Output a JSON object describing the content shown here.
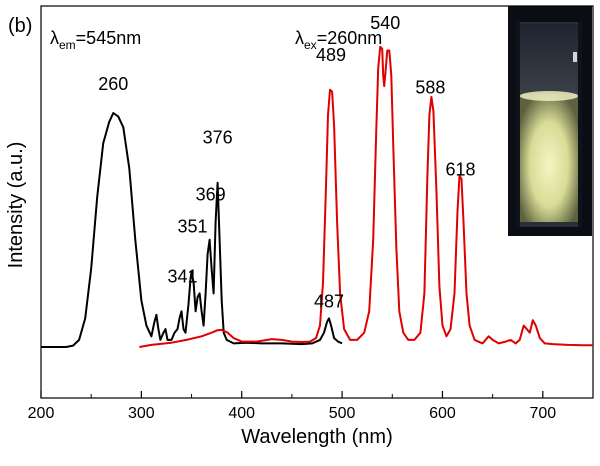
{
  "chart_data": {
    "type": "line",
    "panel_label": "(b)",
    "xlabel": "Wavelength (nm)",
    "ylabel": "Intensity (a.u.)",
    "xlim": [
      200,
      750
    ],
    "ylim": [
      0,
      1.08
    ],
    "x_ticks": [
      200,
      300,
      400,
      500,
      600,
      700
    ],
    "y_ticks_shown": false,
    "grid": false,
    "legend": "none",
    "annotations": {
      "excitation_label": {
        "symbol": "λ",
        "subscript": "em",
        "rest": "=545nm"
      },
      "emission_label": {
        "symbol": "λ",
        "subscript": "ex",
        "rest": "=260nm"
      }
    },
    "peak_labels": [
      {
        "text": "260",
        "x": 272,
        "y": 0.72
      },
      {
        "text": "341",
        "x": 341,
        "y": 0.18
      },
      {
        "text": "351",
        "x": 351,
        "y": 0.32
      },
      {
        "text": "369",
        "x": 369,
        "y": 0.41
      },
      {
        "text": "376",
        "x": 376,
        "y": 0.57
      },
      {
        "text": "487",
        "x": 487,
        "y": 0.11
      },
      {
        "text": "489",
        "x": 489,
        "y": 0.8
      },
      {
        "text": "540",
        "x": 543,
        "y": 0.89
      },
      {
        "text": "588",
        "x": 588,
        "y": 0.71
      },
      {
        "text": "618",
        "x": 618,
        "y": 0.48
      }
    ],
    "series": [
      {
        "color": "#000000",
        "points": [
          [
            200,
            0.0
          ],
          [
            225,
            0.0
          ],
          [
            232,
            0.004
          ],
          [
            238,
            0.02
          ],
          [
            244,
            0.08
          ],
          [
            250,
            0.22
          ],
          [
            256,
            0.42
          ],
          [
            262,
            0.57
          ],
          [
            268,
            0.63
          ],
          [
            272,
            0.655
          ],
          [
            277,
            0.645
          ],
          [
            282,
            0.615
          ],
          [
            288,
            0.5
          ],
          [
            294,
            0.3
          ],
          [
            300,
            0.13
          ],
          [
            305,
            0.06
          ],
          [
            310,
            0.03
          ],
          [
            313,
            0.07
          ],
          [
            315,
            0.09
          ],
          [
            317,
            0.05
          ],
          [
            319,
            0.02
          ],
          [
            322,
            0.04
          ],
          [
            324,
            0.05
          ],
          [
            326,
            0.02
          ],
          [
            330,
            0.02
          ],
          [
            333,
            0.04
          ],
          [
            336,
            0.05
          ],
          [
            338,
            0.08
          ],
          [
            340,
            0.1
          ],
          [
            342,
            0.05
          ],
          [
            344,
            0.04
          ],
          [
            347,
            0.12
          ],
          [
            349,
            0.19
          ],
          [
            350,
            0.21
          ],
          [
            352,
            0.18
          ],
          [
            354,
            0.1
          ],
          [
            356,
            0.14
          ],
          [
            358,
            0.15
          ],
          [
            360,
            0.1
          ],
          [
            362,
            0.06
          ],
          [
            364,
            0.15
          ],
          [
            366,
            0.26
          ],
          [
            368,
            0.3
          ],
          [
            370,
            0.22
          ],
          [
            372,
            0.15
          ],
          [
            374,
            0.35
          ],
          [
            376,
            0.46
          ],
          [
            378,
            0.3
          ],
          [
            380,
            0.13
          ],
          [
            382,
            0.04
          ],
          [
            385,
            0.02
          ],
          [
            392,
            0.01
          ],
          [
            405,
            0.012
          ],
          [
            420,
            0.01
          ],
          [
            440,
            0.01
          ],
          [
            460,
            0.008
          ],
          [
            470,
            0.01
          ],
          [
            478,
            0.02
          ],
          [
            482,
            0.04
          ],
          [
            485,
            0.07
          ],
          [
            487,
            0.08
          ],
          [
            489,
            0.06
          ],
          [
            492,
            0.025
          ],
          [
            496,
            0.015
          ],
          [
            500,
            0.01
          ]
        ]
      },
      {
        "color": "#e00000",
        "points": [
          [
            298,
            0.0
          ],
          [
            310,
            0.006
          ],
          [
            330,
            0.012
          ],
          [
            345,
            0.02
          ],
          [
            360,
            0.03
          ],
          [
            370,
            0.04
          ],
          [
            376,
            0.047
          ],
          [
            380,
            0.048
          ],
          [
            386,
            0.04
          ],
          [
            392,
            0.025
          ],
          [
            400,
            0.015
          ],
          [
            415,
            0.015
          ],
          [
            430,
            0.022
          ],
          [
            440,
            0.02
          ],
          [
            450,
            0.015
          ],
          [
            460,
            0.014
          ],
          [
            468,
            0.015
          ],
          [
            474,
            0.025
          ],
          [
            478,
            0.06
          ],
          [
            481,
            0.18
          ],
          [
            484,
            0.45
          ],
          [
            486,
            0.65
          ],
          [
            488,
            0.72
          ],
          [
            490,
            0.715
          ],
          [
            492,
            0.62
          ],
          [
            495,
            0.35
          ],
          [
            498,
            0.15
          ],
          [
            502,
            0.05
          ],
          [
            508,
            0.02
          ],
          [
            515,
            0.02
          ],
          [
            522,
            0.04
          ],
          [
            527,
            0.1
          ],
          [
            531,
            0.3
          ],
          [
            534,
            0.6
          ],
          [
            536,
            0.78
          ],
          [
            538,
            0.84
          ],
          [
            540,
            0.835
          ],
          [
            541,
            0.76
          ],
          [
            542,
            0.73
          ],
          [
            543,
            0.76
          ],
          [
            545,
            0.83
          ],
          [
            547,
            0.83
          ],
          [
            549,
            0.76
          ],
          [
            551,
            0.56
          ],
          [
            554,
            0.28
          ],
          [
            557,
            0.1
          ],
          [
            561,
            0.04
          ],
          [
            566,
            0.02
          ],
          [
            572,
            0.02
          ],
          [
            578,
            0.04
          ],
          [
            582,
            0.15
          ],
          [
            585,
            0.48
          ],
          [
            587,
            0.65
          ],
          [
            589,
            0.7
          ],
          [
            591,
            0.66
          ],
          [
            594,
            0.44
          ],
          [
            597,
            0.17
          ],
          [
            600,
            0.06
          ],
          [
            604,
            0.03
          ],
          [
            608,
            0.05
          ],
          [
            612,
            0.15
          ],
          [
            615,
            0.38
          ],
          [
            617,
            0.48
          ],
          [
            619,
            0.47
          ],
          [
            621,
            0.35
          ],
          [
            624,
            0.15
          ],
          [
            627,
            0.06
          ],
          [
            632,
            0.02
          ],
          [
            640,
            0.01
          ],
          [
            646,
            0.03
          ],
          [
            650,
            0.02
          ],
          [
            656,
            0.01
          ],
          [
            663,
            0.015
          ],
          [
            668,
            0.02
          ],
          [
            673,
            0.01
          ],
          [
            677,
            0.02
          ],
          [
            681,
            0.06
          ],
          [
            684,
            0.05
          ],
          [
            687,
            0.04
          ],
          [
            690,
            0.075
          ],
          [
            693,
            0.06
          ],
          [
            697,
            0.025
          ],
          [
            702,
            0.01
          ],
          [
            710,
            0.008
          ],
          [
            725,
            0.006
          ],
          [
            740,
            0.005
          ],
          [
            750,
            0.005
          ]
        ]
      }
    ]
  }
}
